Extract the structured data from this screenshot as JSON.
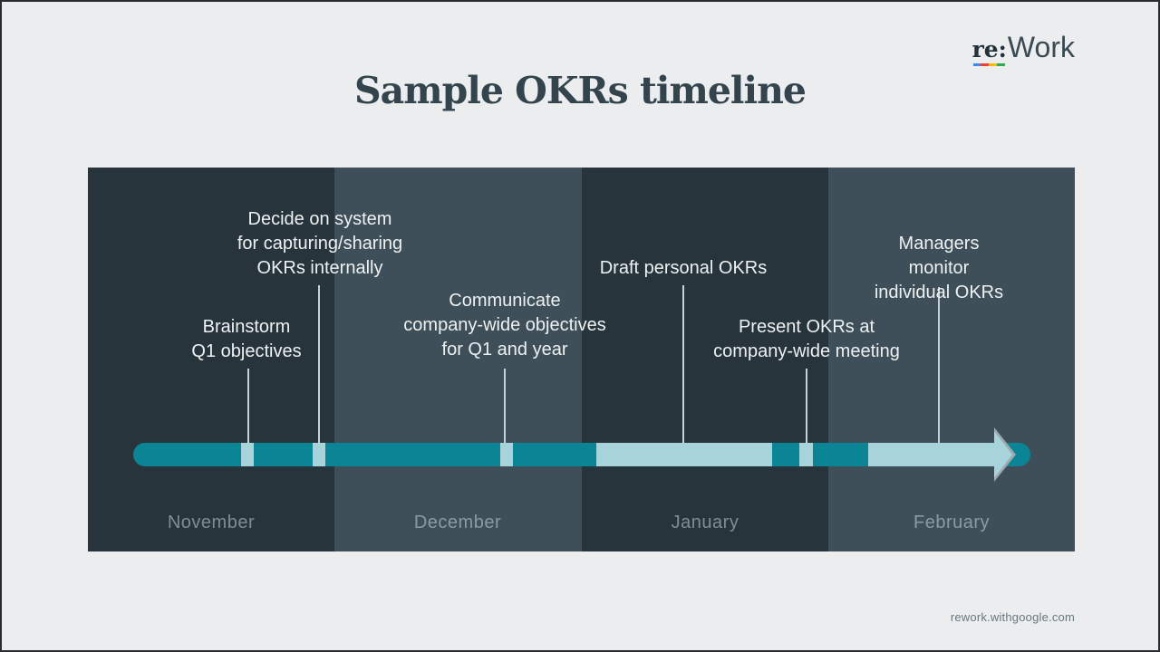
{
  "header": {
    "title": "Sample OKRs timeline"
  },
  "logo": {
    "bold": "re:",
    "light": "Work",
    "underline_colors": [
      "#4285F4",
      "#EA4335",
      "#FBBC05",
      "#34A853"
    ]
  },
  "timeline": {
    "months": [
      "November",
      "December",
      "January",
      "February"
    ],
    "events": [
      {
        "month": "November",
        "label": "Brainstorm\nQ1 objectives"
      },
      {
        "month": "November",
        "label": "Decide on system\nfor capturing/sharing\nOKRs internally"
      },
      {
        "month": "December",
        "label": "Communicate\ncompany-wide objectives\nfor Q1 and year"
      },
      {
        "month": "January",
        "label": "Draft personal OKRs"
      },
      {
        "month": "January",
        "label": "Present OKRs at\ncompany-wide meeting"
      },
      {
        "month": "February",
        "label": "Managers monitor\nindividual OKRs"
      }
    ],
    "colors": {
      "bar_dark_teal": "#0b8496",
      "bar_light_teal": "#a6d4da",
      "panel_dark": "#28343c",
      "panel_light": "#3e4f59"
    }
  },
  "footer": {
    "url": "rework.withgoogle.com"
  }
}
